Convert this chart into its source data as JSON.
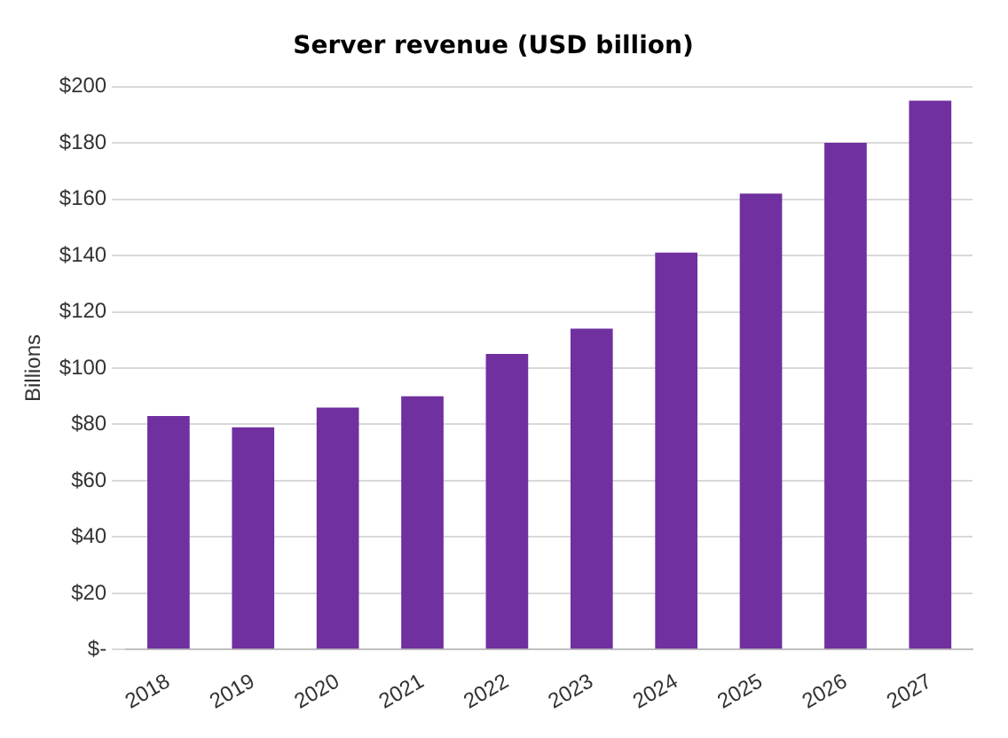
{
  "chart_data": {
    "type": "bar",
    "title": "Server revenue (USD billion)",
    "ylabel": "Billions",
    "categories": [
      "2018",
      "2019",
      "2020",
      "2021",
      "2022",
      "2023",
      "2024",
      "2025",
      "2026",
      "2027"
    ],
    "values": [
      83,
      79,
      86,
      90,
      105,
      114,
      141,
      162,
      180,
      195
    ],
    "color": "#7030a0",
    "ylim": [
      0,
      200
    ],
    "yticks": [
      {
        "value": 0,
        "label": "$-"
      },
      {
        "value": 20,
        "label": "$20"
      },
      {
        "value": 40,
        "label": "$40"
      },
      {
        "value": 60,
        "label": "$60"
      },
      {
        "value": 80,
        "label": "$80"
      },
      {
        "value": 100,
        "label": "$100"
      },
      {
        "value": 120,
        "label": "$120"
      },
      {
        "value": 140,
        "label": "$140"
      },
      {
        "value": 160,
        "label": "$160"
      },
      {
        "value": 180,
        "label": "$180"
      },
      {
        "value": 200,
        "label": "$200"
      }
    ],
    "grid": "y",
    "legend": false
  }
}
